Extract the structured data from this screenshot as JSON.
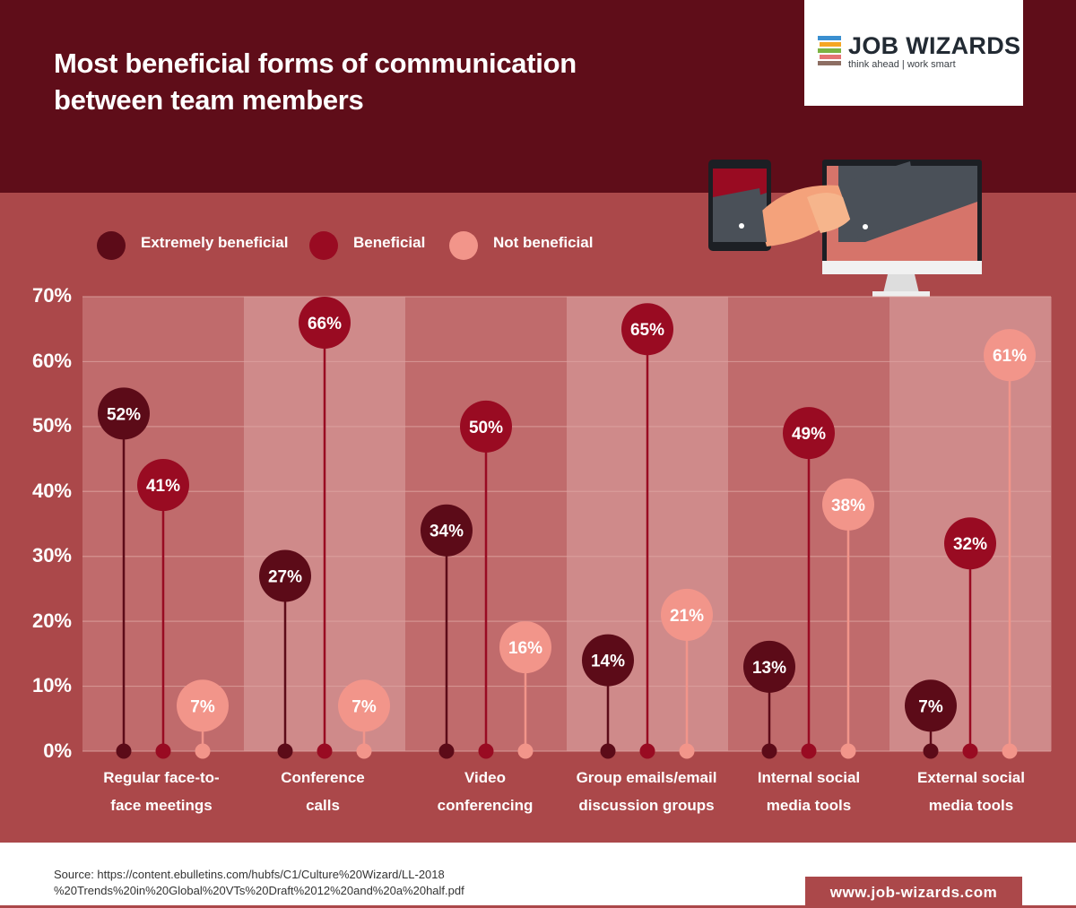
{
  "title_line1": "Most beneficial forms of communication",
  "title_line2": "between team members",
  "logo": {
    "name": "JOB WIZARDS",
    "tagline": "think ahead | work smart"
  },
  "colors": {
    "header": "#5f0d19",
    "background": "#ab484a",
    "extremely": "#5c0b18",
    "beneficial": "#990b22",
    "not": "#f2958a"
  },
  "chart_data": {
    "type": "lollipop",
    "categories": [
      "Regular face-to-face meetings",
      "Conference calls",
      "Video conferencing",
      "Group emails/email discussion groups",
      "Internal social media tools",
      "External social media tools"
    ],
    "series": [
      {
        "name": "Extremely beneficial",
        "values": [
          52,
          27,
          34,
          14,
          13,
          7
        ]
      },
      {
        "name": "Beneficial",
        "values": [
          41,
          66,
          50,
          65,
          49,
          32
        ]
      },
      {
        "name": "Not beneficial",
        "values": [
          7,
          7,
          16,
          21,
          38,
          61
        ]
      }
    ],
    "ylim": [
      0,
      70
    ],
    "yticks": [
      "0%",
      "10%",
      "20%",
      "30%",
      "40%",
      "50%",
      "60%",
      "70%"
    ],
    "value_suffix": "%",
    "legend_position": "top-left",
    "grid": true
  },
  "cat_labels": [
    {
      "l1": "Regular face-to-",
      "l2": "face meetings"
    },
    {
      "l1": "Conference",
      "l2": "calls"
    },
    {
      "l1": "Video",
      "l2": "conferencing"
    },
    {
      "l1": "Group emails/email",
      "l2": "discussion groups"
    },
    {
      "l1": "Internal social",
      "l2": "media tools"
    },
    {
      "l1": "External social",
      "l2": "media tools"
    }
  ],
  "source_line1": "Source: https://content.ebulletins.com/hubfs/C1/Culture%20Wizard/LL-2018",
  "source_line2": "%20Trends%20in%20Global%20VTs%20Draft%2012%20and%20a%20half.pdf",
  "website": "www.job-wizards.com"
}
